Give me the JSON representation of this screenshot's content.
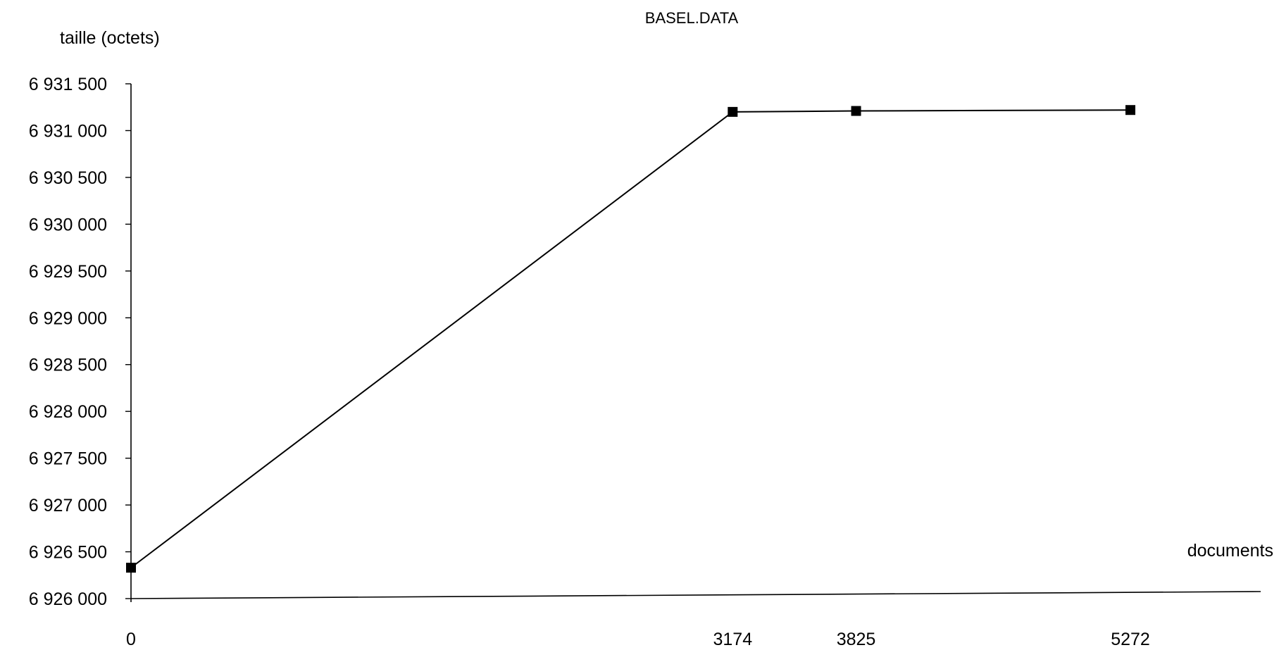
{
  "chart_data": {
    "type": "line",
    "title": "BASEL.DATA",
    "ylabel": "taille  (octets)",
    "xlabel": "documents",
    "x": [
      0,
      3174,
      3825,
      5272
    ],
    "x_tick_labels": [
      "0",
      "3174",
      "3825",
      "5272"
    ],
    "series": [
      {
        "values": [
          6926330,
          6931200,
          6931210,
          6931220
        ]
      }
    ],
    "ylim": [
      6926000,
      6931500
    ],
    "y_ticks": [
      6926000,
      6926500,
      6927000,
      6927500,
      6928000,
      6928500,
      6929000,
      6929500,
      6930000,
      6930500,
      6931000,
      6931500
    ],
    "y_tick_labels": [
      "6 926 000",
      "6 926 500",
      "6 927 000",
      "6 927 500",
      "6 928 000",
      "6 928 500",
      "6 929 000",
      "6 929 500",
      "6 930 000",
      "6 930 500",
      "6 931 000",
      "6 931 500"
    ],
    "marker": "square",
    "grid": false,
    "legend": "none",
    "line_color": "#000000"
  }
}
